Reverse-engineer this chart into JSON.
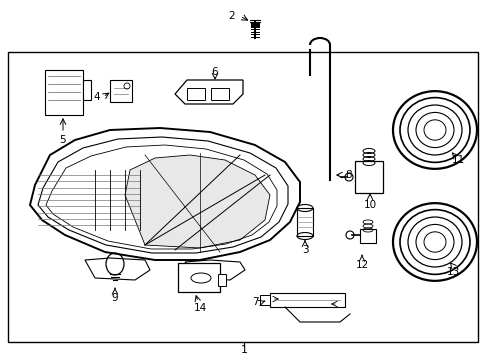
{
  "bg_color": "#ffffff",
  "line_color": "#000000",
  "gray_color": "#777777",
  "light_gray": "#aaaaaa",
  "fig_width": 4.89,
  "fig_height": 3.6,
  "dpi": 100
}
